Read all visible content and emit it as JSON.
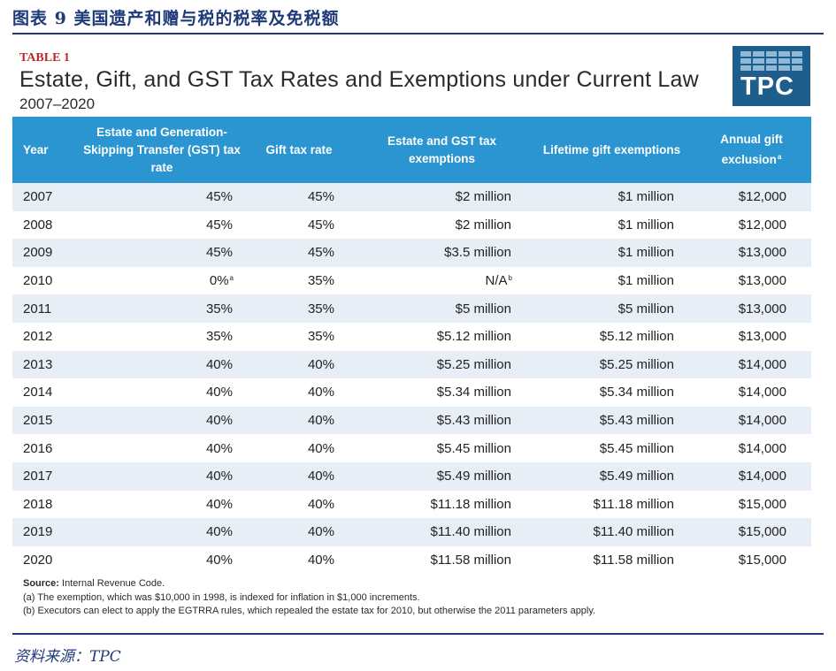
{
  "figure": {
    "caption": "图表 9   美国遗产和赠与税的税率及免税额",
    "source": "资料来源：TPC"
  },
  "table": {
    "tag": "TABLE 1",
    "title": "Estate, Gift, and GST Tax Rates and Exemptions under Current Law",
    "subtitle": "2007–2020",
    "logo_text": "TPC",
    "headers": {
      "year": "Year",
      "estate_gst_rate": "Estate and Generation-Skipping Transfer (GST) tax rate",
      "gift_rate": "Gift tax rate",
      "estate_gst_exemption": "Estate and GST tax exemptions",
      "lifetime_gift": "Lifetime gift exemptions",
      "annual_gift": "Annual gift exclusion",
      "annual_gift_note": "a"
    },
    "rows": [
      {
        "year": "2007",
        "estate_rate": "45%",
        "estate_rate_note": "",
        "gift_rate": "45%",
        "exemption": "$2 million",
        "exemption_note": "",
        "lifetime": "$1 million",
        "annual": "$12,000"
      },
      {
        "year": "2008",
        "estate_rate": "45%",
        "estate_rate_note": "",
        "gift_rate": "45%",
        "exemption": "$2 million",
        "exemption_note": "",
        "lifetime": "$1 million",
        "annual": "$12,000"
      },
      {
        "year": "2009",
        "estate_rate": "45%",
        "estate_rate_note": "",
        "gift_rate": "45%",
        "exemption": "$3.5 million",
        "exemption_note": "",
        "lifetime": "$1 million",
        "annual": "$13,000"
      },
      {
        "year": "2010",
        "estate_rate": "0%",
        "estate_rate_note": "a",
        "gift_rate": "35%",
        "exemption": "N/A",
        "exemption_note": "b",
        "lifetime": "$1 million",
        "annual": "$13,000"
      },
      {
        "year": "2011",
        "estate_rate": "35%",
        "estate_rate_note": "",
        "gift_rate": "35%",
        "exemption": "$5 million",
        "exemption_note": "",
        "lifetime": "$5 million",
        "annual": "$13,000"
      },
      {
        "year": "2012",
        "estate_rate": "35%",
        "estate_rate_note": "",
        "gift_rate": "35%",
        "exemption": "$5.12 million",
        "exemption_note": "",
        "lifetime": "$5.12 million",
        "annual": "$13,000"
      },
      {
        "year": "2013",
        "estate_rate": "40%",
        "estate_rate_note": "",
        "gift_rate": "40%",
        "exemption": "$5.25 million",
        "exemption_note": "",
        "lifetime": "$5.25 million",
        "annual": "$14,000"
      },
      {
        "year": "2014",
        "estate_rate": "40%",
        "estate_rate_note": "",
        "gift_rate": "40%",
        "exemption": "$5.34 million",
        "exemption_note": "",
        "lifetime": "$5.34 million",
        "annual": "$14,000"
      },
      {
        "year": "2015",
        "estate_rate": "40%",
        "estate_rate_note": "",
        "gift_rate": "40%",
        "exemption": "$5.43 million",
        "exemption_note": "",
        "lifetime": "$5.43 million",
        "annual": "$14,000"
      },
      {
        "year": "2016",
        "estate_rate": "40%",
        "estate_rate_note": "",
        "gift_rate": "40%",
        "exemption": "$5.45 million",
        "exemption_note": "",
        "lifetime": "$5.45 million",
        "annual": "$14,000"
      },
      {
        "year": "2017",
        "estate_rate": "40%",
        "estate_rate_note": "",
        "gift_rate": "40%",
        "exemption": "$5.49 million",
        "exemption_note": "",
        "lifetime": "$5.49 million",
        "annual": "$14,000"
      },
      {
        "year": "2018",
        "estate_rate": "40%",
        "estate_rate_note": "",
        "gift_rate": "40%",
        "exemption": "$11.18 million",
        "exemption_note": "",
        "lifetime": "$11.18 million",
        "annual": "$15,000"
      },
      {
        "year": "2019",
        "estate_rate": "40%",
        "estate_rate_note": "",
        "gift_rate": "40%",
        "exemption": "$11.40 million",
        "exemption_note": "",
        "lifetime": "$11.40 million",
        "annual": "$15,000"
      },
      {
        "year": "2020",
        "estate_rate": "40%",
        "estate_rate_note": "",
        "gift_rate": "40%",
        "exemption": "$11.58 million",
        "exemption_note": "",
        "lifetime": "$11.58 million",
        "annual": "$15,000"
      }
    ],
    "notes": {
      "source_label": "Source:",
      "source_text": " Internal Revenue Code.",
      "note_a": "(a) The exemption, which was $10,000 in 1998, is indexed for inflation in $1,000 increments.",
      "note_b": "(b) Executors can elect to apply the EGTRRA rules, which repealed the estate tax for 2010, but otherwise the 2011 parameters apply."
    }
  },
  "colors": {
    "header_bg": "#2a95d1",
    "row_stripe": "#e8eef5",
    "caption_navy": "#1f3a78",
    "table_tag_red": "#c0272d",
    "logo_bg": "#1d5e8c"
  }
}
